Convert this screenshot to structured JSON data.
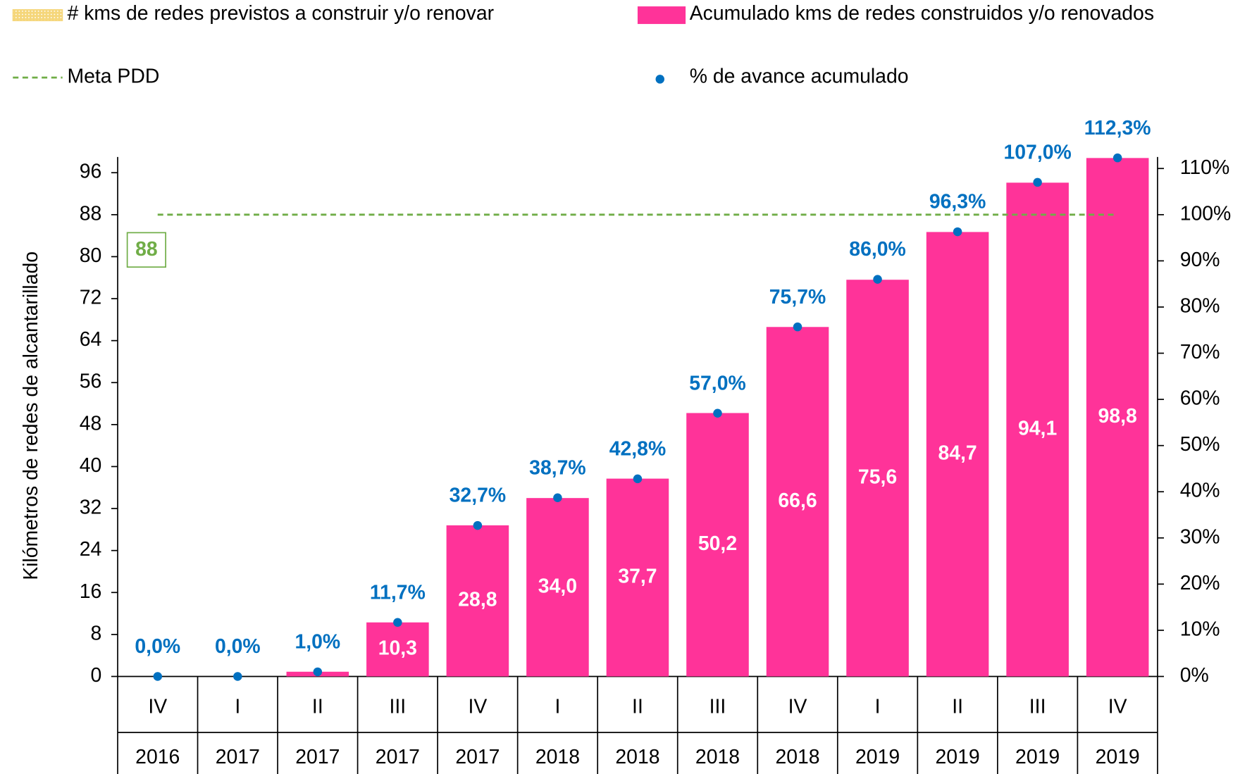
{
  "chart_data": {
    "type": "bar",
    "ylabel": "Kilómetros de redes de alcantarillado",
    "categories": [
      "IV",
      "I",
      "II",
      "III",
      "IV",
      "I",
      "II",
      "III",
      "IV",
      "I",
      "II",
      "III",
      "IV"
    ],
    "years": [
      "2016",
      "2017",
      "2017",
      "2017",
      "2017",
      "2018",
      "2018",
      "2018",
      "2018",
      "2019",
      "2019",
      "2019",
      "2019"
    ],
    "series": [
      {
        "name": "# kms de redes previstos a construir y/o renovar",
        "color": "#f5d67a"
      },
      {
        "name": "Acumulado kms de redes construidos y/o renovados",
        "color": "#ff3399",
        "values": [
          0,
          0,
          0.9,
          10.3,
          28.8,
          34.0,
          37.7,
          50.2,
          66.6,
          75.6,
          84.7,
          94.1,
          98.8
        ],
        "value_labels": [
          null,
          null,
          null,
          "10,3",
          "28,8",
          "34,0",
          "37,7",
          "50,2",
          "66,6",
          "75,6",
          "84,7",
          "94,1",
          "98,8"
        ]
      },
      {
        "name": "% de avance acumulado",
        "color": "#0070c0",
        "axis": "y2",
        "values": [
          0,
          0,
          1.0,
          11.7,
          32.7,
          38.7,
          42.8,
          57.0,
          75.7,
          86.0,
          96.3,
          107.0,
          112.3
        ],
        "value_labels": [
          "0,0%",
          "0,0%",
          "1,0%",
          "11,7%",
          "32,7%",
          "38,7%",
          "42,8%",
          "57,0%",
          "75,7%",
          "86,0%",
          "96,3%",
          "107,0%",
          "112,3%"
        ]
      }
    ],
    "target": {
      "name": "Meta PDD",
      "color": "#70ad47",
      "value": 88
    },
    "ylim": [
      0,
      99
    ],
    "yticks": [
      0,
      8,
      16,
      24,
      32,
      40,
      48,
      56,
      64,
      72,
      80,
      88,
      96
    ],
    "y2lim": [
      0,
      112.5
    ],
    "y2ticks": [
      {
        "value": 0,
        "label": "0%"
      },
      {
        "value": 10,
        "label": "10%"
      },
      {
        "value": 20,
        "label": "20%"
      },
      {
        "value": 30,
        "label": "30%"
      },
      {
        "value": 40,
        "label": "40%"
      },
      {
        "value": 50,
        "label": "50%"
      },
      {
        "value": 60,
        "label": "60%"
      },
      {
        "value": 70,
        "label": "70%"
      },
      {
        "value": 80,
        "label": "80%"
      },
      {
        "value": 90,
        "label": "90%"
      },
      {
        "value": 100,
        "label": "100%"
      },
      {
        "value": 110,
        "label": "110%"
      }
    ]
  }
}
